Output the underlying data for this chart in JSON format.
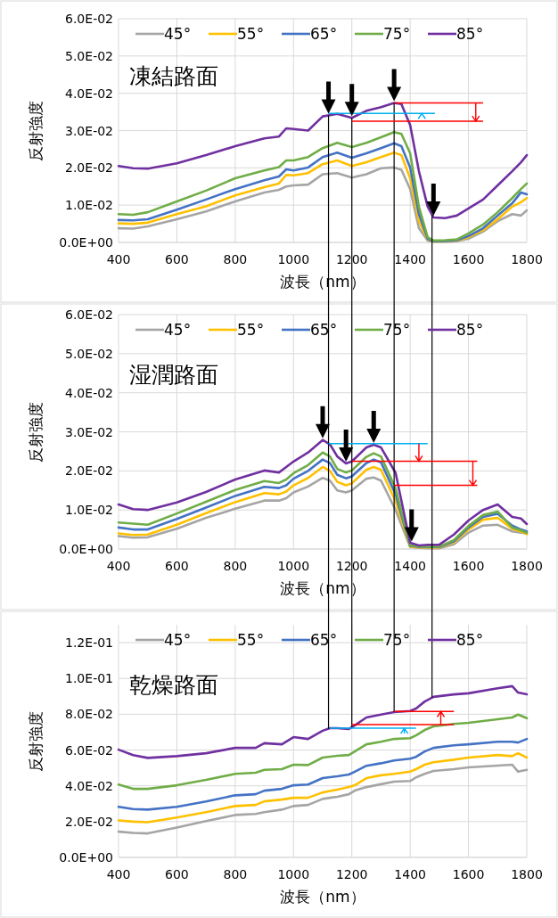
{
  "chart_data": [
    {
      "type": "line",
      "title": "凍結路面",
      "xlabel": "波長（nm）",
      "ylabel": "反射強度",
      "legend": "top",
      "grid": true,
      "marker": "none",
      "line_style": "solid",
      "xlim": [
        400,
        1800
      ],
      "xticks": [
        400,
        600,
        800,
        1000,
        1200,
        1400,
        1600,
        1800
      ],
      "ylim": [
        0,
        0.06
      ],
      "yticks": [
        {
          "value": 0,
          "label": "0.0E+00"
        },
        {
          "value": 0.01,
          "label": "1.0E-02"
        },
        {
          "value": 0.02,
          "label": "2.0E-02"
        },
        {
          "value": 0.03,
          "label": "3.0E-02"
        },
        {
          "value": 0.04,
          "label": "4.0E-02"
        },
        {
          "value": 0.05,
          "label": "5.0E-02"
        },
        {
          "value": 0.06,
          "label": "6.0E-02"
        }
      ],
      "x": [
        400,
        450,
        500,
        600,
        700,
        800,
        900,
        950,
        975,
        1000,
        1050,
        1100,
        1150,
        1200,
        1250,
        1300,
        1345,
        1370,
        1400,
        1430,
        1460,
        1480,
        1520,
        1560,
        1600,
        1650,
        1700,
        1750,
        1780,
        1800
      ],
      "series": [
        {
          "name": "45°",
          "color": "#a5a5a5",
          "values": [
            0.0038,
            0.0037,
            0.0043,
            0.0062,
            0.0083,
            0.011,
            0.0134,
            0.0141,
            0.015,
            0.0153,
            0.0155,
            0.0183,
            0.0186,
            0.0174,
            0.0183,
            0.0199,
            0.0201,
            0.0195,
            0.0143,
            0.0038,
            0.0005,
            0.0002,
            0.0002,
            0.0003,
            0.001,
            0.0029,
            0.0057,
            0.0076,
            0.0072,
            0.0086
          ]
        },
        {
          "name": "55°",
          "color": "#ffc000",
          "values": [
            0.0051,
            0.005,
            0.0053,
            0.0076,
            0.0097,
            0.0126,
            0.0148,
            0.0158,
            0.0181,
            0.018,
            0.0186,
            0.021,
            0.022,
            0.0205,
            0.0215,
            0.0229,
            0.0241,
            0.0234,
            0.0172,
            0.0057,
            0.0008,
            0.0002,
            0.0003,
            0.0005,
            0.0014,
            0.0033,
            0.0062,
            0.0096,
            0.0108,
            0.0119
          ]
        },
        {
          "name": "65°",
          "color": "#4472c4",
          "values": [
            0.006,
            0.0059,
            0.0062,
            0.0088,
            0.0115,
            0.0143,
            0.0167,
            0.0177,
            0.0196,
            0.0193,
            0.0201,
            0.0229,
            0.0241,
            0.0227,
            0.0239,
            0.0253,
            0.0266,
            0.0258,
            0.0201,
            0.0076,
            0.001,
            0.0003,
            0.0004,
            0.0006,
            0.0017,
            0.0038,
            0.0072,
            0.0105,
            0.0134,
            0.0129
          ]
        },
        {
          "name": "75°",
          "color": "#70ad47",
          "values": [
            0.0076,
            0.0074,
            0.0081,
            0.011,
            0.0139,
            0.0172,
            0.0193,
            0.0202,
            0.022,
            0.022,
            0.0229,
            0.0253,
            0.0267,
            0.0256,
            0.0267,
            0.0282,
            0.0296,
            0.0291,
            0.0239,
            0.0096,
            0.0014,
            0.0005,
            0.0006,
            0.0008,
            0.0024,
            0.0048,
            0.0081,
            0.0119,
            0.0143,
            0.0158
          ]
        },
        {
          "name": "85°",
          "color": "#7030a0",
          "values": [
            0.0205,
            0.0199,
            0.0198,
            0.0212,
            0.0234,
            0.0258,
            0.0279,
            0.0284,
            0.0306,
            0.0304,
            0.03,
            0.0338,
            0.0345,
            0.0334,
            0.0353,
            0.0363,
            0.0374,
            0.0371,
            0.0315,
            0.0191,
            0.0096,
            0.0067,
            0.0065,
            0.0072,
            0.0091,
            0.0115,
            0.0153,
            0.0191,
            0.0215,
            0.0234
          ]
        }
      ],
      "ref_lines": [
        {
          "axis": "x",
          "value": 1120,
          "color": "#000000"
        },
        {
          "axis": "x",
          "value": 1200,
          "color": "#000000"
        },
        {
          "axis": "x",
          "value": 1345,
          "color": "#000000"
        },
        {
          "axis": "x",
          "value": 1475,
          "color": "#000000"
        },
        {
          "axis": "y",
          "value": 0.0346,
          "color": "#00b0f0"
        },
        {
          "axis": "y",
          "value": 0.0374,
          "color": "#ff0000"
        },
        {
          "axis": "y",
          "value": 0.0325,
          "color": "#ff0000"
        }
      ]
    },
    {
      "type": "line",
      "title": "湿潤路面",
      "xlabel": "波長（nm）",
      "ylabel": "反射強度",
      "legend": "top",
      "grid": true,
      "marker": "none",
      "line_style": "solid",
      "xlim": [
        400,
        1800
      ],
      "xticks": [
        400,
        600,
        800,
        1000,
        1200,
        1400,
        1600,
        1800
      ],
      "ylim": [
        0,
        0.06
      ],
      "yticks": [
        {
          "value": 0,
          "label": "0.0E+00"
        },
        {
          "value": 0.01,
          "label": "1.0E-02"
        },
        {
          "value": 0.02,
          "label": "2.0E-02"
        },
        {
          "value": 0.03,
          "label": "3.0E-02"
        },
        {
          "value": 0.04,
          "label": "4.0E-02"
        },
        {
          "value": 0.05,
          "label": "5.0E-02"
        },
        {
          "value": 0.06,
          "label": "6.0E-02"
        }
      ],
      "x": [
        400,
        450,
        500,
        600,
        700,
        800,
        900,
        950,
        975,
        1000,
        1050,
        1100,
        1125,
        1150,
        1180,
        1200,
        1250,
        1275,
        1300,
        1350,
        1400,
        1430,
        1460,
        1500,
        1550,
        1600,
        1650,
        1700,
        1750,
        1780,
        1800
      ],
      "series": [
        {
          "name": "45°",
          "color": "#a5a5a5",
          "values": [
            0.0033,
            0.0029,
            0.003,
            0.0052,
            0.008,
            0.0103,
            0.0124,
            0.0124,
            0.013,
            0.0145,
            0.016,
            0.0182,
            0.0175,
            0.015,
            0.0145,
            0.015,
            0.018,
            0.0183,
            0.0175,
            0.01,
            0.0005,
            0.0003,
            0.0002,
            0.0002,
            0.0012,
            0.0042,
            0.006,
            0.0062,
            0.0045,
            0.0042,
            0.004
          ]
        },
        {
          "name": "55°",
          "color": "#ffc000",
          "values": [
            0.004,
            0.0036,
            0.0037,
            0.0062,
            0.0092,
            0.012,
            0.0143,
            0.014,
            0.0147,
            0.0163,
            0.0182,
            0.021,
            0.02,
            0.0172,
            0.0163,
            0.0168,
            0.0203,
            0.021,
            0.0203,
            0.0122,
            0.0006,
            0.0004,
            0.0004,
            0.0004,
            0.0017,
            0.005,
            0.0075,
            0.008,
            0.0052,
            0.0045,
            0.0038
          ]
        },
        {
          "name": "65°",
          "color": "#4472c4",
          "values": [
            0.0055,
            0.005,
            0.005,
            0.0077,
            0.0106,
            0.0136,
            0.0159,
            0.0156,
            0.0163,
            0.018,
            0.02,
            0.0229,
            0.022,
            0.019,
            0.0181,
            0.0186,
            0.022,
            0.0229,
            0.0222,
            0.014,
            0.0008,
            0.0006,
            0.0005,
            0.0005,
            0.002,
            0.0055,
            0.0082,
            0.009,
            0.006,
            0.005,
            0.0045
          ]
        },
        {
          "name": "75°",
          "color": "#70ad47",
          "values": [
            0.0068,
            0.0065,
            0.0062,
            0.0091,
            0.0121,
            0.0151,
            0.0174,
            0.0169,
            0.0178,
            0.0194,
            0.0215,
            0.0247,
            0.0237,
            0.0205,
            0.0196,
            0.0201,
            0.0236,
            0.0245,
            0.0237,
            0.0155,
            0.0009,
            0.0007,
            0.0006,
            0.0006,
            0.0023,
            0.0059,
            0.0087,
            0.0096,
            0.0055,
            0.0048,
            0.0041
          ]
        },
        {
          "name": "85°",
          "color": "#7030a0",
          "values": [
            0.0114,
            0.0102,
            0.01,
            0.0119,
            0.0146,
            0.0178,
            0.0201,
            0.0196,
            0.021,
            0.0224,
            0.0247,
            0.0279,
            0.0268,
            0.0237,
            0.0219,
            0.0224,
            0.026,
            0.0267,
            0.026,
            0.0195,
            0.0016,
            0.0009,
            0.0011,
            0.0011,
            0.0037,
            0.0073,
            0.01,
            0.0114,
            0.0082,
            0.0078,
            0.0064
          ]
        }
      ],
      "ref_lines": [
        {
          "axis": "x",
          "value": 1120,
          "color": "#000000"
        },
        {
          "axis": "x",
          "value": 1200,
          "color": "#000000"
        },
        {
          "axis": "x",
          "value": 1345,
          "color": "#000000"
        },
        {
          "axis": "x",
          "value": 1475,
          "color": "#000000"
        },
        {
          "axis": "y",
          "value": 0.027,
          "color": "#00b0f0"
        },
        {
          "axis": "y",
          "value": 0.0225,
          "color": "#ff0000"
        },
        {
          "axis": "y",
          "value": 0.0163,
          "color": "#ff0000"
        }
      ]
    },
    {
      "type": "line",
      "title": "乾燥路面",
      "xlabel": "波長（nm）",
      "ylabel": "反射強度",
      "legend": "top",
      "grid": true,
      "marker": "none",
      "line_style": "solid",
      "xlim": [
        400,
        1800
      ],
      "xticks": [
        400,
        600,
        800,
        1000,
        1200,
        1400,
        1600,
        1800
      ],
      "ylim": [
        0,
        0.13
      ],
      "yticks": [
        {
          "value": 0,
          "label": "0.0E+00"
        },
        {
          "value": 0.02,
          "label": "2.0E-02"
        },
        {
          "value": 0.04,
          "label": "4.0E-02"
        },
        {
          "value": 0.06,
          "label": "6.0E-02"
        },
        {
          "value": 0.08,
          "label": "8.0E-02"
        },
        {
          "value": 0.1,
          "label": "1.0E-01"
        },
        {
          "value": 0.12,
          "label": "1.2E-01"
        }
      ],
      "x": [
        400,
        450,
        500,
        600,
        700,
        800,
        870,
        900,
        960,
        1000,
        1050,
        1100,
        1125,
        1150,
        1190,
        1210,
        1250,
        1300,
        1345,
        1400,
        1420,
        1450,
        1480,
        1550,
        1600,
        1700,
        1750,
        1770,
        1800
      ],
      "series": [
        {
          "name": "45°",
          "color": "#a5a5a5",
          "values": [
            0.0144,
            0.0137,
            0.0134,
            0.0167,
            0.0203,
            0.0237,
            0.0243,
            0.0253,
            0.0267,
            0.0287,
            0.0293,
            0.0327,
            0.0333,
            0.0339,
            0.0353,
            0.0373,
            0.0393,
            0.0409,
            0.0423,
            0.0427,
            0.0447,
            0.0467,
            0.0483,
            0.0493,
            0.0503,
            0.0513,
            0.0518,
            0.0479,
            0.0489
          ]
        },
        {
          "name": "55°",
          "color": "#ffc000",
          "values": [
            0.0207,
            0.02,
            0.0197,
            0.0223,
            0.0253,
            0.0287,
            0.0293,
            0.0313,
            0.0323,
            0.0333,
            0.0333,
            0.0363,
            0.0371,
            0.0379,
            0.0393,
            0.0403,
            0.0443,
            0.0459,
            0.0467,
            0.0479,
            0.0493,
            0.0518,
            0.0532,
            0.0546,
            0.0558,
            0.0572,
            0.0566,
            0.0582,
            0.0558
          ]
        },
        {
          "name": "65°",
          "color": "#4472c4",
          "values": [
            0.0283,
            0.027,
            0.0267,
            0.0283,
            0.0313,
            0.0347,
            0.0353,
            0.0373,
            0.0383,
            0.0403,
            0.0407,
            0.0443,
            0.0448,
            0.0453,
            0.0463,
            0.0479,
            0.0512,
            0.0526,
            0.0542,
            0.0552,
            0.0562,
            0.0592,
            0.0612,
            0.0626,
            0.0632,
            0.0646,
            0.0646,
            0.0642,
            0.0662
          ]
        },
        {
          "name": "75°",
          "color": "#70ad47",
          "values": [
            0.0407,
            0.0383,
            0.0383,
            0.0403,
            0.0433,
            0.0467,
            0.0473,
            0.0489,
            0.0493,
            0.0518,
            0.0516,
            0.0558,
            0.0563,
            0.0568,
            0.0572,
            0.0592,
            0.0632,
            0.0646,
            0.0662,
            0.0666,
            0.0682,
            0.0712,
            0.0732,
            0.0746,
            0.0752,
            0.0772,
            0.0782,
            0.0798,
            0.0778
          ]
        },
        {
          "name": "85°",
          "color": "#7030a0",
          "values": [
            0.0602,
            0.0572,
            0.0556,
            0.0566,
            0.0582,
            0.0612,
            0.0612,
            0.0638,
            0.0632,
            0.0672,
            0.0662,
            0.0708,
            0.0722,
            0.0722,
            0.0718,
            0.0738,
            0.0782,
            0.0798,
            0.0812,
            0.0818,
            0.0832,
            0.0871,
            0.0897,
            0.0911,
            0.0917,
            0.0945,
            0.0957,
            0.0921,
            0.0911
          ]
        }
      ],
      "ref_lines": [
        {
          "axis": "x",
          "value": 1120,
          "color": "#000000"
        },
        {
          "axis": "x",
          "value": 1200,
          "color": "#000000"
        },
        {
          "axis": "x",
          "value": 1345,
          "color": "#000000"
        },
        {
          "axis": "x",
          "value": 1475,
          "color": "#000000"
        },
        {
          "axis": "y",
          "value": 0.0722,
          "color": "#00b0f0"
        },
        {
          "axis": "y",
          "value": 0.0815,
          "color": "#ff0000"
        },
        {
          "axis": "y",
          "value": 0.0742,
          "color": "#ff0000"
        }
      ]
    }
  ]
}
